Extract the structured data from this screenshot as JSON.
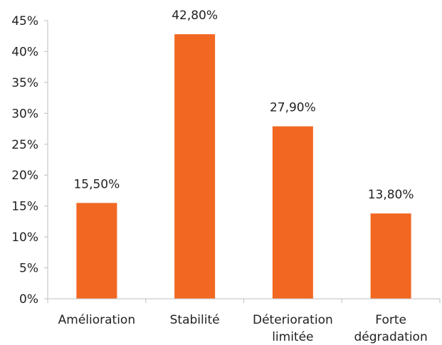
{
  "chart_data": {
    "type": "bar",
    "categories": [
      [
        "Amélioration"
      ],
      [
        "Stabilité"
      ],
      [
        "Déterioration",
        "limitée"
      ],
      [
        "Forte",
        "dégradation"
      ]
    ],
    "values": [
      15.5,
      42.8,
      27.9,
      13.8
    ],
    "data_labels": [
      "15,50%",
      "42,80%",
      "27,90%",
      "13,80%"
    ],
    "ylim": [
      0,
      45
    ],
    "yticks": [
      0,
      5,
      10,
      15,
      20,
      25,
      30,
      35,
      40,
      45
    ],
    "ytick_labels": [
      "0%",
      "5%",
      "10%",
      "15%",
      "20%",
      "25%",
      "30%",
      "35%",
      "40%",
      "45%"
    ],
    "bar_color": "#f26722",
    "grid": false,
    "title": "",
    "xlabel": "",
    "ylabel": ""
  }
}
